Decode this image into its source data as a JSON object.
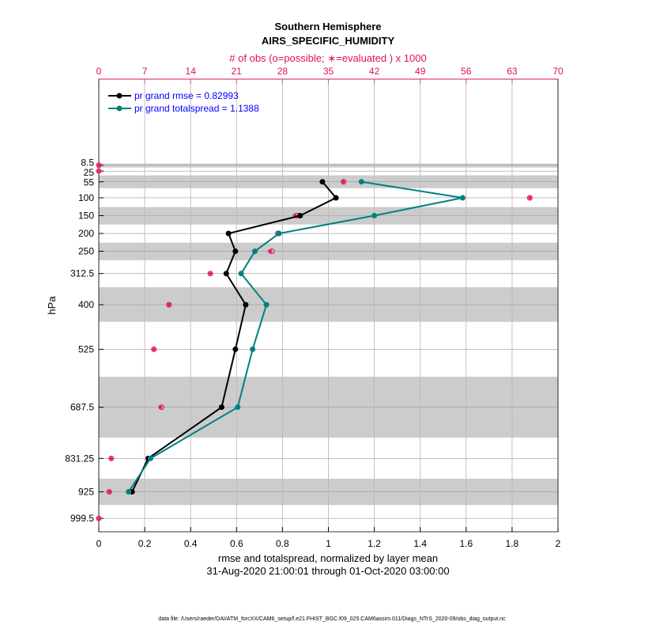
{
  "chart_data": {
    "type": "line",
    "title": "Southern Hemisphere",
    "subtitle": "AIRS_SPECIFIC_HUMIDITY",
    "top_axis_label": "# of obs (o=possible; ∗=evaluated ) x 1000",
    "xlabel": "rmse and totalspread, normalized by layer mean",
    "date_range": "31-Aug-2020 21:00:01 through 01-Oct-2020 03:00:00",
    "ylabel": "hPa",
    "footer": "data file: /Users/raeder/DAI/ATM_forcXX/CAM6_setup/f.e21.FHIST_BGC.f09_025.CAM6assim.011/Diags_NTrS_2020-09/obs_diag_output.nc",
    "xlim": [
      0,
      2
    ],
    "xticks": [
      "0",
      "0.2",
      "0.4",
      "0.6",
      "0.8",
      "1",
      "1.2",
      "1.4",
      "1.6",
      "1.8",
      "2"
    ],
    "top_xlim": [
      0,
      70
    ],
    "top_xticks": [
      "0",
      "7",
      "14",
      "21",
      "28",
      "35",
      "42",
      "49",
      "56",
      "63",
      "70"
    ],
    "ylim": [
      -233,
      1037
    ],
    "levels": [
      8.5,
      25,
      55,
      100,
      150,
      200,
      250,
      312.5,
      400,
      525,
      687.5,
      831.25,
      925,
      999.5
    ],
    "level_labels": [
      "8.5",
      "25",
      "55",
      "100",
      "150",
      "200",
      "250",
      "312.5",
      "400",
      "525",
      "687.5",
      "831.25",
      "925",
      "999.5"
    ],
    "shaded_layers": [
      [
        4,
        15
      ],
      [
        37,
        73
      ],
      [
        126,
        175
      ],
      [
        226,
        275
      ],
      [
        351,
        448
      ],
      [
        602,
        773
      ],
      [
        888,
        962
      ]
    ],
    "series": [
      {
        "name": "pr grand rmse = 0.82993",
        "color": "#000000",
        "levels": [
          55,
          100,
          150,
          200,
          250,
          312.5,
          400,
          525,
          687.5,
          831.25,
          925
        ],
        "values": [
          0.974,
          1.033,
          0.877,
          0.565,
          0.595,
          0.555,
          0.64,
          0.595,
          0.535,
          0.215,
          0.145
        ]
      },
      {
        "name": "pr grand totalspread = 1.1388",
        "color": "#008080",
        "levels": [
          55,
          100,
          150,
          200,
          250,
          312.5,
          400,
          525,
          687.5,
          831.25,
          925
        ],
        "values": [
          1.144,
          1.585,
          1.2,
          0.785,
          0.68,
          0.62,
          0.73,
          0.67,
          0.605,
          0.225,
          0.13
        ]
      }
    ],
    "obs": {
      "color": "#e0105a",
      "levels": [
        8.5,
        25,
        55,
        100,
        150,
        200,
        250,
        312.5,
        400,
        525,
        687.5,
        831.25,
        925,
        999.5
      ],
      "possible": [
        0,
        0,
        37.3,
        65.7,
        30.2,
        27.3,
        26.4,
        17.0,
        10.7,
        8.4,
        9.6,
        1.9,
        1.6,
        0
      ],
      "evaluated": [
        0,
        0,
        37.3,
        65.7,
        29.9,
        27.3,
        26.1,
        17.0,
        10.7,
        8.4,
        9.4,
        1.9,
        1.6,
        0
      ]
    }
  }
}
